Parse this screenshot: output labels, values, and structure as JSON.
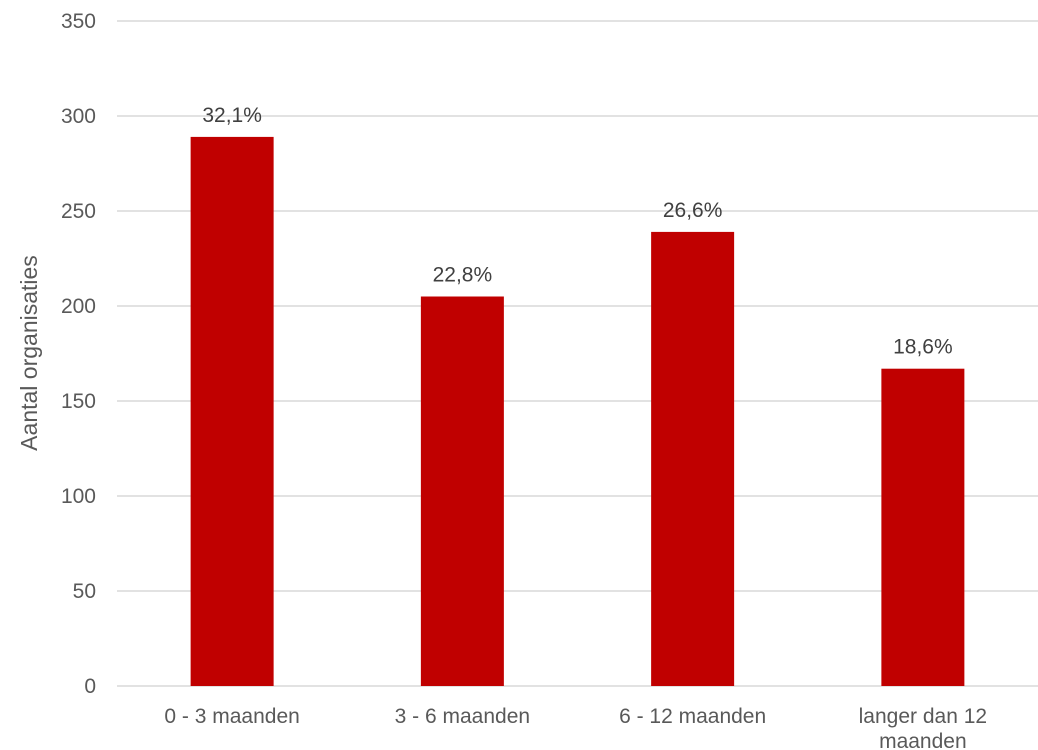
{
  "chart_data": {
    "type": "bar",
    "title": "",
    "xlabel": "",
    "ylabel": "Aantal organisaties",
    "ylim": [
      0,
      350
    ],
    "yticks": [
      0,
      50,
      100,
      150,
      200,
      250,
      300,
      350
    ],
    "categories": [
      "0 - 3 maanden",
      "3 - 6 maanden",
      "6 - 12 maanden",
      "langer dan 12 maanden"
    ],
    "category_lines": [
      [
        "0 - 3 maanden"
      ],
      [
        "3 - 6 maanden"
      ],
      [
        "6 - 12 maanden"
      ],
      [
        "langer dan 12",
        "maanden"
      ]
    ],
    "values": [
      289,
      205,
      239,
      167
    ],
    "data_labels": [
      "32,1%",
      "22,8%",
      "26,6%",
      "18,6%"
    ],
    "bar_color": "#c00000",
    "grid": true,
    "legend": "none"
  }
}
